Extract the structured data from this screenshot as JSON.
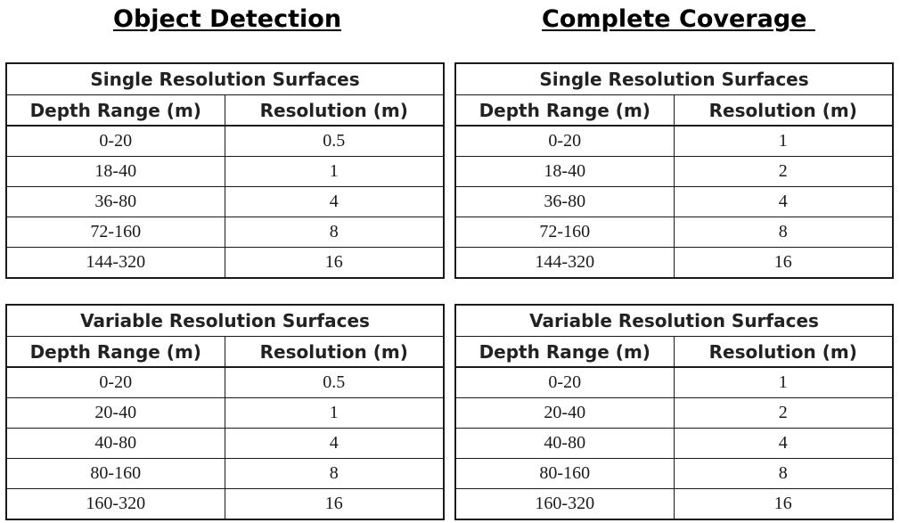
{
  "headings": {
    "left": "Object Detection",
    "right": "Complete Coverage "
  },
  "tables": {
    "od_single": {
      "title": "Single Resolution Surfaces",
      "col1": "Depth Range (m)",
      "col2": "Resolution (m)",
      "rows": [
        [
          "0-20",
          "0.5"
        ],
        [
          "18-40",
          "1"
        ],
        [
          "36-80",
          "4"
        ],
        [
          "72-160",
          "8"
        ],
        [
          "144-320",
          "16"
        ]
      ]
    },
    "cc_single": {
      "title": "Single Resolution Surfaces",
      "col1": "Depth Range (m)",
      "col2": "Resolution (m)",
      "rows": [
        [
          "0-20",
          "1"
        ],
        [
          "18-40",
          "2"
        ],
        [
          "36-80",
          "4"
        ],
        [
          "72-160",
          "8"
        ],
        [
          "144-320",
          "16"
        ]
      ]
    },
    "od_variable": {
      "title": "Variable Resolution Surfaces",
      "col1": "Depth Range (m)",
      "col2": "Resolution (m)",
      "rows": [
        [
          "0-20",
          "0.5"
        ],
        [
          "20-40",
          "1"
        ],
        [
          "40-80",
          "4"
        ],
        [
          "80-160",
          "8"
        ],
        [
          "160-320",
          "16"
        ]
      ]
    },
    "cc_variable": {
      "title": "Variable Resolution Surfaces",
      "col1": "Depth Range (m)",
      "col2": "Resolution (m)",
      "rows": [
        [
          "0-20",
          "1"
        ],
        [
          "20-40",
          "2"
        ],
        [
          "40-80",
          "4"
        ],
        [
          "80-160",
          "8"
        ],
        [
          "160-320",
          "16"
        ]
      ]
    }
  }
}
